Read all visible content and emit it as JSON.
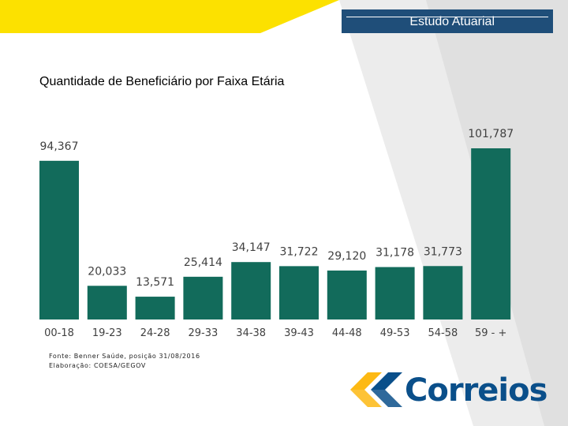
{
  "header": {
    "badge_label": "Estudo Atuarial"
  },
  "slide_title": "Quantidade de Beneficiário por Faixa Etária",
  "footer": {
    "source_line": "Fonte: Benner Saúde, posição 31/08/2016",
    "prepared_by": "Elaboração: COESA/GEGOV"
  },
  "logo": {
    "text": "Correios"
  },
  "colors": {
    "bar": "#126b5b",
    "header_badge": "#1f4e79",
    "accent_yellow": "#fce100"
  },
  "chart_data": {
    "type": "bar",
    "title": "",
    "xlabel": "",
    "ylabel": "",
    "categories": [
      "00-18",
      "19-23",
      "24-28",
      "29-33",
      "34-38",
      "39-43",
      "44-48",
      "49-53",
      "54-58",
      "59 - +"
    ],
    "values": [
      94367,
      20033,
      13571,
      25414,
      34147,
      31722,
      29120,
      31178,
      31773,
      101787
    ],
    "value_labels": [
      "94,367",
      "20,033",
      "13,571",
      "25,414",
      "34,147",
      "31,722",
      "29,120",
      "31,178",
      "31,773",
      "101,787"
    ],
    "ylim": [
      0,
      101787
    ],
    "grid": false,
    "legend": "none"
  }
}
